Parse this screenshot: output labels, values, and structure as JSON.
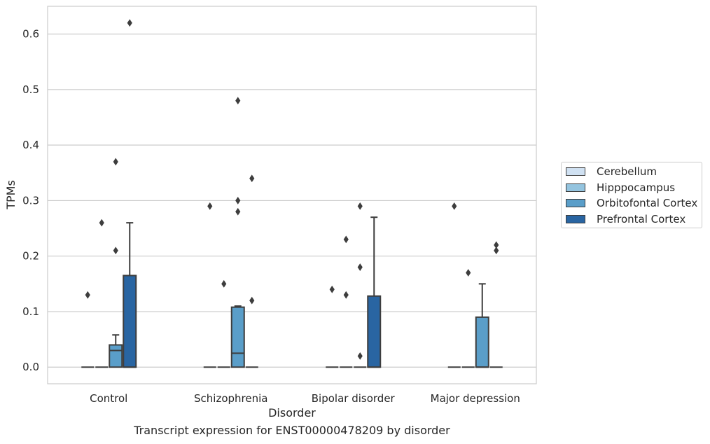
{
  "caption": "Transcript expression for ENST00000478209 by disorder",
  "chart_data": {
    "type": "box",
    "xlabel": "Disorder",
    "ylabel": "TPMs",
    "ylim": [
      -0.03,
      0.65
    ],
    "yticks": [
      "0.0",
      "0.1",
      "0.2",
      "0.3",
      "0.4",
      "0.5",
      "0.6"
    ],
    "categories": [
      "Control",
      "Schizophrenia",
      "Bipolar disorder",
      "Major depression"
    ],
    "grid": true,
    "legend_position": "right",
    "series": [
      {
        "name": "Cerebellum",
        "color": "#d0e1f2",
        "boxes": [
          {
            "q1": 0,
            "median": 0,
            "q3": 0,
            "whisker_low": 0,
            "whisker_high": 0,
            "outliers": [
              0.13
            ]
          },
          {
            "q1": 0,
            "median": 0,
            "q3": 0,
            "whisker_low": 0,
            "whisker_high": 0,
            "outliers": [
              0.29
            ]
          },
          {
            "q1": 0,
            "median": 0,
            "q3": 0,
            "whisker_low": 0,
            "whisker_high": 0,
            "outliers": [
              0.14
            ]
          },
          {
            "q1": 0,
            "median": 0,
            "q3": 0,
            "whisker_low": 0,
            "whisker_high": 0,
            "outliers": [
              0.29
            ]
          }
        ]
      },
      {
        "name": "Hipppocampus",
        "color": "#94c4df",
        "boxes": [
          {
            "q1": 0,
            "median": 0,
            "q3": 0,
            "whisker_low": 0,
            "whisker_high": 0,
            "outliers": [
              0.26
            ]
          },
          {
            "q1": 0,
            "median": 0,
            "q3": 0,
            "whisker_low": 0,
            "whisker_high": 0,
            "outliers": [
              0.15
            ]
          },
          {
            "q1": 0,
            "median": 0,
            "q3": 0,
            "whisker_low": 0,
            "whisker_high": 0,
            "outliers": [
              0.23,
              0.13
            ]
          },
          {
            "q1": 0,
            "median": 0,
            "q3": 0,
            "whisker_low": 0,
            "whisker_high": 0,
            "outliers": [
              0.17
            ]
          }
        ]
      },
      {
        "name": "Orbitofontal Cortex",
        "color": "#5a9ec9",
        "boxes": [
          {
            "q1": 0,
            "median": 0.03,
            "q3": 0.04,
            "whisker_low": 0,
            "whisker_high": 0.058,
            "outliers": [
              0.37,
              0.21
            ]
          },
          {
            "q1": 0,
            "median": 0.025,
            "q3": 0.108,
            "whisker_low": 0,
            "whisker_high": 0.11,
            "outliers": [
              0.48,
              0.3,
              0.28
            ]
          },
          {
            "q1": 0,
            "median": 0,
            "q3": 0,
            "whisker_low": 0,
            "whisker_high": 0,
            "outliers": [
              0.29,
              0.18,
              0.02
            ]
          },
          {
            "q1": 0,
            "median": 0,
            "q3": 0.09,
            "whisker_low": 0,
            "whisker_high": 0.15,
            "outliers": []
          }
        ]
      },
      {
        "name": "Prefrontal Cortex",
        "color": "#2965a2",
        "boxes": [
          {
            "q1": 0,
            "median": 0,
            "q3": 0.165,
            "whisker_low": 0,
            "whisker_high": 0.26,
            "outliers": [
              0.62
            ]
          },
          {
            "q1": 0,
            "median": 0,
            "q3": 0,
            "whisker_low": 0,
            "whisker_high": 0,
            "outliers": [
              0.34,
              0.12
            ]
          },
          {
            "q1": 0,
            "median": 0,
            "q3": 0.128,
            "whisker_low": 0,
            "whisker_high": 0.27,
            "outliers": []
          },
          {
            "q1": 0,
            "median": 0,
            "q3": 0,
            "whisker_low": 0,
            "whisker_high": 0,
            "outliers": [
              0.22,
              0.21
            ]
          }
        ]
      }
    ]
  }
}
